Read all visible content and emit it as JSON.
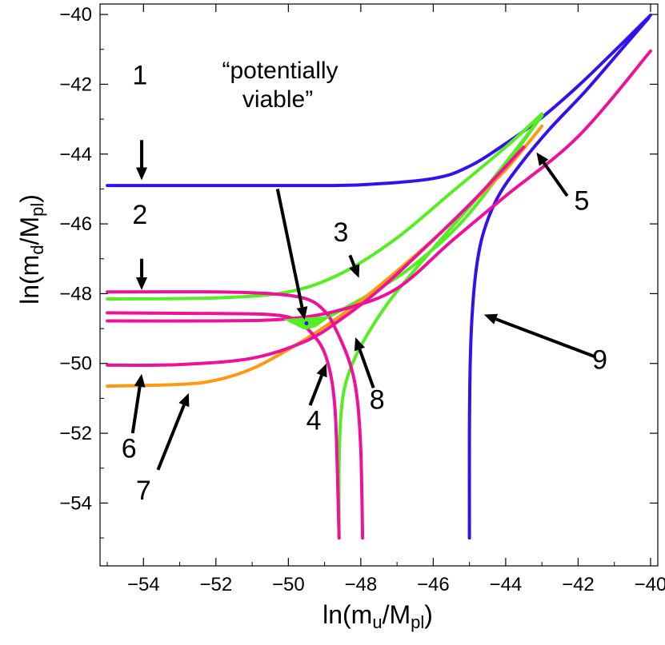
{
  "chart_data": {
    "type": "line",
    "title": "",
    "xlabel": "ln(m_u/M_pl)",
    "ylabel": "ln(m_d/M_pl)",
    "xlim": [
      -55.2,
      -39.8
    ],
    "ylim": [
      -55.8,
      -39.7
    ],
    "xticks": [
      -54,
      -52,
      -50,
      -48,
      -46,
      -44,
      -42,
      -40
    ],
    "yticks": [
      -54,
      -52,
      -50,
      -48,
      -46,
      -44,
      -42,
      -40
    ],
    "xtick_labels": [
      "−54",
      "−52",
      "−50",
      "−48",
      "−46",
      "−44",
      "−42",
      "−40"
    ],
    "ytick_labels": [
      "−54",
      "−52",
      "−50",
      "−48",
      "−46",
      "−44",
      "−42",
      "−40"
    ],
    "grid": false,
    "colors": {
      "blue": "#3311ee",
      "magenta": "#ee1199",
      "green": "#55ee22",
      "orange": "#ff9911",
      "arrow": "#000000"
    },
    "series": [
      {
        "id": "1",
        "color": "#3311ee",
        "points": [
          [
            -55,
            -44.9
          ],
          [
            -50,
            -44.9
          ],
          [
            -48,
            -44.88
          ],
          [
            -46,
            -44.7
          ],
          [
            -45,
            -44.35
          ],
          [
            -44,
            -43.7
          ],
          [
            -43,
            -42.95
          ],
          [
            -42,
            -42.05
          ],
          [
            -41,
            -41.05
          ],
          [
            -40,
            -40.02
          ]
        ]
      },
      {
        "id": "9",
        "color": "#3311ee",
        "points": [
          [
            -45,
            -55
          ],
          [
            -45,
            -52
          ],
          [
            -44.98,
            -50
          ],
          [
            -44.92,
            -48.5
          ],
          [
            -44.8,
            -47.2
          ],
          [
            -44.6,
            -46.2
          ],
          [
            -44.2,
            -45.2
          ],
          [
            -43.6,
            -44.3
          ],
          [
            -42.8,
            -43.3
          ],
          [
            -41.8,
            -42.2
          ],
          [
            -40.8,
            -41.0
          ],
          [
            -40.05,
            -40.1
          ]
        ]
      },
      {
        "id": "3",
        "color": "#55ee22",
        "points": [
          [
            -55,
            -48.15
          ],
          [
            -52,
            -48.12
          ],
          [
            -50,
            -47.95
          ],
          [
            -48.5,
            -47.4
          ],
          [
            -47,
            -46.4
          ],
          [
            -45.5,
            -45.1
          ],
          [
            -44,
            -43.8
          ],
          [
            -43,
            -42.85
          ]
        ]
      },
      {
        "id": "8",
        "color": "#55ee22",
        "points": [
          [
            -48.6,
            -55
          ],
          [
            -48.6,
            -53
          ],
          [
            -48.55,
            -51.5
          ],
          [
            -48.4,
            -50.5
          ],
          [
            -48.0,
            -49.5
          ],
          [
            -47.2,
            -48.2
          ],
          [
            -46,
            -46.7
          ],
          [
            -44.5,
            -44.9
          ],
          [
            -43,
            -42.9
          ]
        ]
      },
      {
        "id": "green-extra",
        "color": "#55ee22",
        "points": [
          [
            -50.0,
            -48.75
          ],
          [
            -49.5,
            -48.78
          ],
          [
            -49.0,
            -48.7
          ],
          [
            -48.5,
            -48.45
          ],
          [
            -47.5,
            -47.85
          ],
          [
            -46.5,
            -47.15
          ],
          [
            -45,
            -45.7
          ],
          [
            -43,
            -42.9
          ]
        ]
      },
      {
        "id": "orange",
        "color": "#ff9911",
        "points": [
          [
            -55,
            -50.65
          ],
          [
            -53,
            -50.6
          ],
          [
            -52,
            -50.48
          ],
          [
            -51,
            -50.15
          ],
          [
            -50,
            -49.6
          ],
          [
            -49,
            -48.95
          ],
          [
            -48,
            -48.2
          ],
          [
            -47,
            -47.35
          ],
          [
            -46,
            -46.45
          ],
          [
            -45,
            -45.45
          ],
          [
            -44,
            -44.45
          ],
          [
            -43,
            -43.2
          ]
        ]
      },
      {
        "id": "2",
        "color": "#ee1199",
        "points": [
          [
            -55,
            -47.95
          ],
          [
            -52,
            -47.95
          ],
          [
            -50.5,
            -48.0
          ],
          [
            -49.5,
            -48.15
          ],
          [
            -49.0,
            -48.5
          ],
          [
            -48.7,
            -49.0
          ],
          [
            -48.3,
            -50.0
          ],
          [
            -48.1,
            -51.0
          ],
          [
            -48.0,
            -52.5
          ],
          [
            -47.95,
            -55
          ]
        ]
      },
      {
        "id": "4",
        "color": "#ee1199",
        "points": [
          [
            -55,
            -48.55
          ],
          [
            -52,
            -48.57
          ],
          [
            -50.5,
            -48.6
          ],
          [
            -49.8,
            -48.75
          ],
          [
            -49.3,
            -49.2
          ],
          [
            -49.0,
            -49.7
          ],
          [
            -48.8,
            -50.5
          ],
          [
            -48.7,
            -51.5
          ],
          [
            -48.65,
            -53
          ],
          [
            -48.6,
            -55
          ]
        ]
      },
      {
        "id": "5",
        "color": "#ee1199",
        "points": [
          [
            -55,
            -48.78
          ],
          [
            -52,
            -48.78
          ],
          [
            -50,
            -48.72
          ],
          [
            -48.5,
            -48.45
          ],
          [
            -47,
            -47.85
          ],
          [
            -45.5,
            -46.5
          ],
          [
            -44,
            -45.2
          ],
          [
            -42,
            -43.5
          ],
          [
            -40,
            -41.05
          ]
        ]
      },
      {
        "id": "6",
        "color": "#ee1199",
        "points": [
          [
            -55,
            -50.05
          ],
          [
            -53,
            -50.03
          ],
          [
            -51,
            -49.85
          ],
          [
            -49.5,
            -49.35
          ],
          [
            -48.5,
            -48.7
          ],
          [
            -47.5,
            -47.9
          ],
          [
            -46.5,
            -46.95
          ],
          [
            -45,
            -45.45
          ],
          [
            -43.5,
            -43.8
          ]
        ]
      }
    ],
    "region": {
      "label": "“potentially viable”",
      "color": "#55ee22",
      "polygon": [
        [
          -50.1,
          -48.74
        ],
        [
          -49.0,
          -48.66
        ],
        [
          -48.85,
          -48.65
        ],
        [
          -49.25,
          -48.95
        ],
        [
          -49.55,
          -49.02
        ]
      ]
    },
    "point": {
      "x": -49.5,
      "y": -48.85,
      "color": "#3311ee"
    },
    "labels": [
      {
        "text": "1",
        "x": -54.1,
        "y": -42.0
      },
      {
        "text": "2",
        "x": -54.1,
        "y": -46.0
      },
      {
        "text": "3",
        "x": -48.55,
        "y": -46.5
      },
      {
        "text": "4",
        "x": -49.3,
        "y": -51.9
      },
      {
        "text": "5",
        "x": -41.9,
        "y": -45.6
      },
      {
        "text": "6",
        "x": -54.4,
        "y": -52.7
      },
      {
        "text": "7",
        "x": -54.0,
        "y": -53.9
      },
      {
        "text": "8",
        "x": -47.55,
        "y": -51.3
      },
      {
        "text": "9",
        "x": -41.4,
        "y": -50.15
      }
    ],
    "arrows": [
      {
        "from": [
          -54.05,
          -43.6
        ],
        "to": [
          -54.05,
          -44.75
        ]
      },
      {
        "from": [
          -54.05,
          -47.0
        ],
        "to": [
          -54.05,
          -47.9
        ]
      },
      {
        "from": [
          -48.3,
          -46.9
        ],
        "to": [
          -48.05,
          -47.55
        ]
      },
      {
        "from": [
          -49.4,
          -51.2
        ],
        "to": [
          -48.95,
          -50.0
        ]
      },
      {
        "from": [
          -42.3,
          -45.2
        ],
        "to": [
          -43.15,
          -43.95
        ]
      },
      {
        "from": [
          -54.3,
          -52.0
        ],
        "to": [
          -54.05,
          -50.3
        ]
      },
      {
        "from": [
          -53.6,
          -53.05
        ],
        "to": [
          -52.75,
          -50.85
        ]
      },
      {
        "from": [
          -47.65,
          -50.7
        ],
        "to": [
          -48.15,
          -49.25
        ]
      },
      {
        "from": [
          -41.55,
          -49.8
        ],
        "to": [
          -44.6,
          -48.6
        ]
      },
      {
        "from": [
          -50.3,
          -45.0
        ],
        "to": [
          -49.55,
          -48.75
        ]
      }
    ]
  },
  "text": {
    "xlabel": "ln(m",
    "xlabel_sub": "u",
    "xlabel_mid": "/M",
    "xlabel_sub2": "pl",
    "xlabel_end": ")",
    "ylabel": "ln(m",
    "ylabel_sub": "d",
    "ylabel_mid": "/M",
    "ylabel_sub2": "pl",
    "ylabel_end": ")",
    "annot_line1": "“potentially",
    "annot_line2": "viable”"
  }
}
